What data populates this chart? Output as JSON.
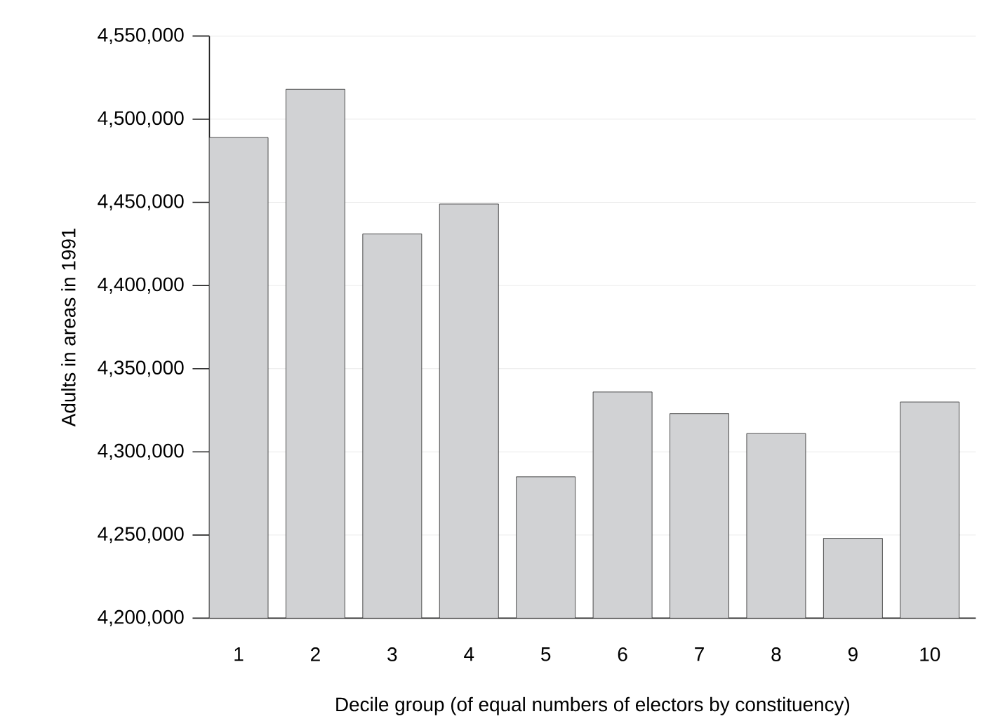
{
  "chart_data": {
    "type": "bar",
    "xlabel": "Decile group (of equal numbers of electors by constituency)",
    "ylabel": "Adults in areas in 1991",
    "categories": [
      "1",
      "2",
      "3",
      "4",
      "5",
      "6",
      "7",
      "8",
      "9",
      "10"
    ],
    "values": [
      4489000,
      4518000,
      4431000,
      4449000,
      4285000,
      4336000,
      4323000,
      4311000,
      4248000,
      4330000
    ],
    "color": "#d1d2d4",
    "ylim": [
      4200000,
      4550000
    ],
    "yticks": [
      {
        "value": 4200000,
        "label": "4,200,000"
      },
      {
        "value": 4250000,
        "label": "4,250,000"
      },
      {
        "value": 4300000,
        "label": "4,300,000"
      },
      {
        "value": 4350000,
        "label": "4,350,000"
      },
      {
        "value": 4400000,
        "label": "4,400,000"
      },
      {
        "value": 4450000,
        "label": "4,450,000"
      },
      {
        "value": 4500000,
        "label": "4,500,000"
      },
      {
        "value": 4550000,
        "label": "4,550,000"
      }
    ],
    "grid": "y"
  }
}
